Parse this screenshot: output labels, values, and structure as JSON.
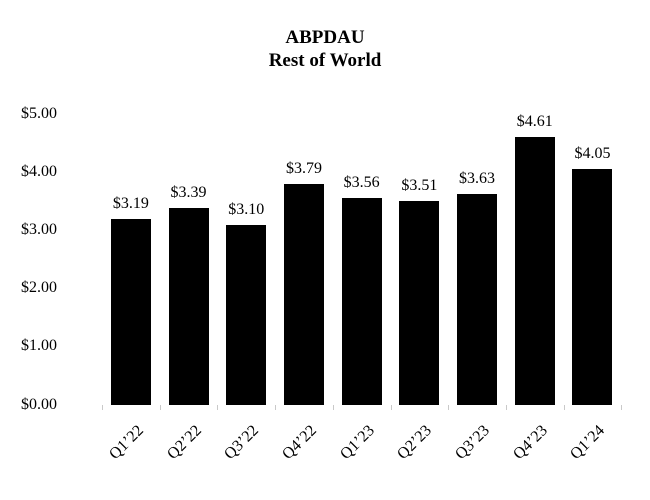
{
  "page": {
    "background": "#ffffff",
    "text_color": "#000000"
  },
  "chart_data": {
    "type": "bar",
    "title": "ABPDAU",
    "subtitle": "Rest of World",
    "categories": [
      "Q1’22",
      "Q2’22",
      "Q3’22",
      "Q4’22",
      "Q1’23",
      "Q2’23",
      "Q3’23",
      "Q4’23",
      "Q1’24"
    ],
    "values": [
      3.19,
      3.39,
      3.1,
      3.79,
      3.56,
      3.51,
      3.63,
      4.61,
      4.05
    ],
    "value_labels": [
      "$3.19",
      "$3.39",
      "$3.10",
      "$3.79",
      "$3.56",
      "$3.51",
      "$3.63",
      "$4.61",
      "$4.05"
    ],
    "y_tick_labels": [
      "$5.00",
      "$4.00",
      "$3.00",
      "$2.00",
      "$1.00",
      "$0.00"
    ],
    "ylim": [
      0,
      5
    ],
    "xlabel": "",
    "ylabel": "",
    "bar_color": "#000000",
    "grid": "off",
    "legend": "none",
    "x_label_rotation_deg": -45
  }
}
